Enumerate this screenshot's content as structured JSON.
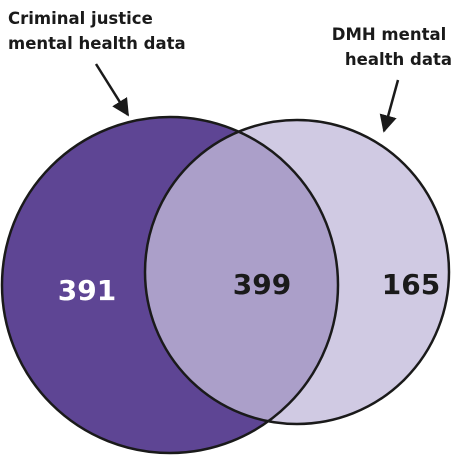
{
  "labels": {
    "left_line1": "Criminal justice",
    "left_line2": "mental health data",
    "right_line1": "DMH mental",
    "right_line2": "health data"
  },
  "counts": {
    "left_only": "391",
    "overlap": "399",
    "right_only": "165"
  },
  "colors": {
    "left_only": "#5e4594",
    "overlap": "#ab9fc9",
    "right_only": "#d0cae3",
    "outline": "#1a1a1a",
    "count_on_dark": "#ffffff",
    "count_on_light": "#1a1a1a"
  }
}
